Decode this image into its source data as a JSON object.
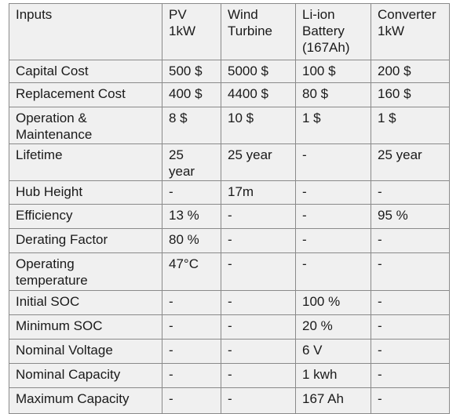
{
  "table": {
    "header": [
      "Inputs",
      "PV\n1kW",
      "Wind\nTurbine",
      "Li-ion\nBattery\n(167Ah)",
      "Converter\n1kW"
    ],
    "rows": [
      [
        "Capital Cost",
        "500 $",
        "5000 $",
        "100 $",
        "200 $"
      ],
      [
        "Replacement Cost",
        "400 $",
        "4400 $",
        "80 $",
        "160 $"
      ],
      [
        "Operation &\nMaintenance",
        "8 $",
        "10 $",
        "1 $",
        "1 $"
      ],
      [
        "Lifetime",
        "25\nyear",
        "25 year",
        "-",
        "25 year"
      ],
      [
        "Hub Height",
        "-",
        "17m",
        "-",
        "-"
      ],
      [
        "Efficiency",
        "13 %",
        "-",
        "-",
        "95 %"
      ],
      [
        "Derating Factor",
        "80 %",
        "-",
        "-",
        "-"
      ],
      [
        "Operating\ntemperature",
        "47°C",
        "-",
        "-",
        "-"
      ],
      [
        "Initial SOC",
        "-",
        "-",
        "100 %",
        "-"
      ],
      [
        "Minimum SOC",
        "-",
        "-",
        "20 %",
        "-"
      ],
      [
        "Nominal Voltage",
        "-",
        "-",
        "6 V",
        "-"
      ],
      [
        "Nominal Capacity",
        "-",
        "-",
        "1 kwh",
        "-"
      ],
      [
        "Maximum Capacity",
        "-",
        "-",
        "167 Ah",
        "-"
      ]
    ]
  }
}
